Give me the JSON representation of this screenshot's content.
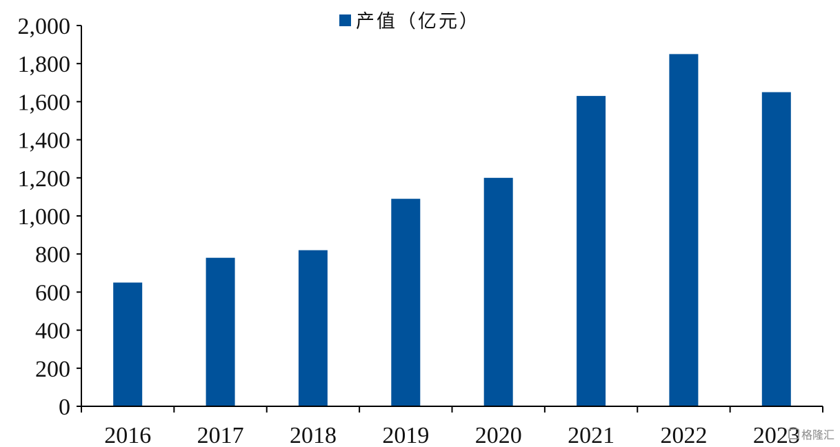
{
  "chart_data": {
    "type": "bar",
    "categories": [
      "2016",
      "2017",
      "2018",
      "2019",
      "2020",
      "2021",
      "2022",
      "2023"
    ],
    "series": [
      {
        "name": "产值（亿元）",
        "values": [
          650,
          780,
          820,
          1090,
          1200,
          1630,
          1850,
          1650
        ]
      }
    ],
    "ylim": [
      0,
      2000
    ],
    "yticks": [
      0,
      200,
      400,
      600,
      800,
      1000,
      1200,
      1400,
      1600,
      1800,
      2000
    ],
    "ytick_labels": [
      "0",
      "200",
      "400",
      "600",
      "800",
      "1,000",
      "1,200",
      "1,400",
      "1,600",
      "1,800",
      "2,000"
    ],
    "title": "",
    "xlabel": "",
    "ylabel": "",
    "legend_position": "top-center",
    "grid": false,
    "bar_color": "#00529b"
  },
  "watermark": {
    "text": "格隆汇",
    "icon": "logo-mark"
  }
}
